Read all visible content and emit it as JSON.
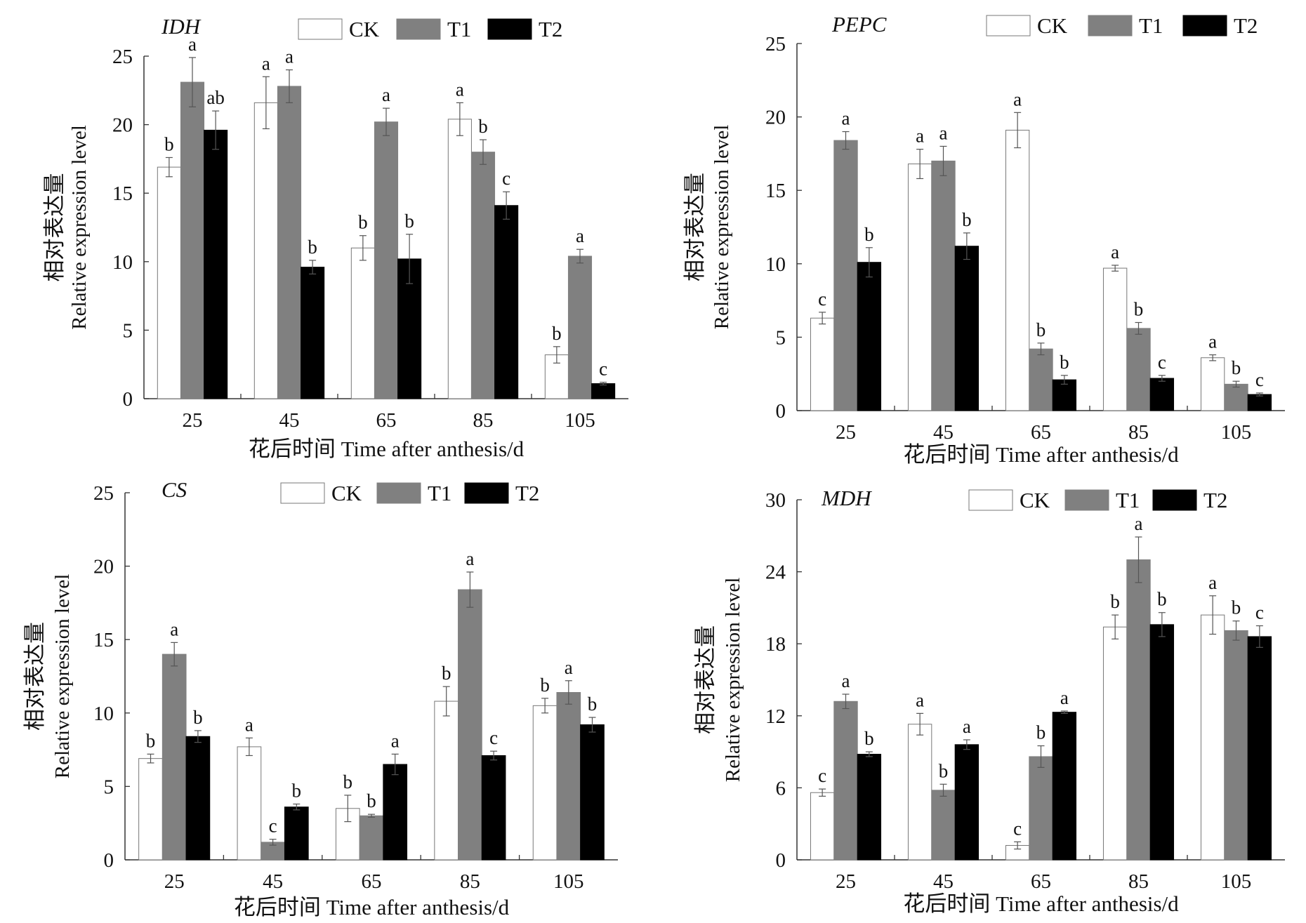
{
  "series_colors": {
    "CK": "#ffffff",
    "T1": "#808080",
    "T2": "#000000"
  },
  "chart_data": [
    {
      "type": "bar",
      "title": "IDH",
      "ylabel_cn": "相对表达量",
      "ylabel": "Relative expression level",
      "xlabel": "花后时间 Time after anthesis/d",
      "categories": [
        "25",
        "45",
        "65",
        "85",
        "105"
      ],
      "ylim": [
        0,
        25
      ],
      "yticks": [
        0,
        5,
        10,
        15,
        20,
        25
      ],
      "legend": "top",
      "series": [
        {
          "name": "CK",
          "values": [
            16.9,
            21.6,
            11.0,
            20.4,
            3.2
          ],
          "errors": [
            0.7,
            1.9,
            0.9,
            1.2,
            0.6
          ],
          "letters": [
            "b",
            "a",
            "b",
            "a",
            "b"
          ]
        },
        {
          "name": "T1",
          "values": [
            23.1,
            22.8,
            20.2,
            18.0,
            10.4
          ],
          "errors": [
            1.8,
            1.2,
            1.0,
            0.9,
            0.5
          ],
          "letters": [
            "a",
            "a",
            "a",
            "b",
            "a"
          ]
        },
        {
          "name": "T2",
          "values": [
            19.6,
            9.6,
            10.2,
            14.1,
            1.1
          ],
          "errors": [
            1.4,
            0.5,
            1.8,
            1.0,
            0.1
          ],
          "letters": [
            "ab",
            "b",
            "b",
            "c",
            "c"
          ]
        }
      ]
    },
    {
      "type": "bar",
      "title": "PEPC",
      "ylabel_cn": "相对表达量",
      "ylabel": "Relative expression level",
      "xlabel": "花后时间 Time after anthesis/d",
      "categories": [
        "25",
        "45",
        "65",
        "85",
        "105"
      ],
      "ylim": [
        0,
        25
      ],
      "yticks": [
        0,
        5,
        10,
        15,
        20,
        25
      ],
      "legend": "top",
      "series": [
        {
          "name": "CK",
          "values": [
            6.3,
            16.8,
            19.1,
            9.7,
            3.6
          ],
          "errors": [
            0.4,
            1.0,
            1.2,
            0.2,
            0.2
          ],
          "letters": [
            "c",
            "a",
            "a",
            "a",
            "a"
          ]
        },
        {
          "name": "T1",
          "values": [
            18.4,
            17.0,
            4.2,
            5.6,
            1.8
          ],
          "errors": [
            0.6,
            1.0,
            0.4,
            0.4,
            0.2
          ],
          "letters": [
            "a",
            "a",
            "b",
            "b",
            "b"
          ]
        },
        {
          "name": "T2",
          "values": [
            10.1,
            11.2,
            2.1,
            2.2,
            1.1
          ],
          "errors": [
            1.0,
            0.9,
            0.3,
            0.2,
            0.1
          ],
          "letters": [
            "b",
            "b",
            "b",
            "c",
            "c"
          ]
        }
      ]
    },
    {
      "type": "bar",
      "title": "CS",
      "ylabel_cn": "相对表达量",
      "ylabel": "Relative expression level",
      "xlabel": "花后时间 Time after anthesis/d",
      "categories": [
        "25",
        "45",
        "65",
        "85",
        "105"
      ],
      "ylim": [
        0,
        25
      ],
      "yticks": [
        0,
        5,
        10,
        15,
        20,
        25
      ],
      "legend": "top",
      "series": [
        {
          "name": "CK",
          "values": [
            6.9,
            7.7,
            3.5,
            10.8,
            10.5
          ],
          "errors": [
            0.3,
            0.6,
            0.9,
            1.0,
            0.5
          ],
          "letters": [
            "b",
            "a",
            "b",
            "b",
            "b"
          ]
        },
        {
          "name": "T1",
          "values": [
            14.0,
            1.2,
            3.0,
            18.4,
            11.4
          ],
          "errors": [
            0.8,
            0.2,
            0.1,
            1.2,
            0.8
          ],
          "letters": [
            "a",
            "c",
            "b",
            "a",
            "a"
          ]
        },
        {
          "name": "T2",
          "values": [
            8.4,
            3.6,
            6.5,
            7.1,
            9.2
          ],
          "errors": [
            0.4,
            0.2,
            0.7,
            0.3,
            0.5
          ],
          "letters": [
            "b",
            "b",
            "a",
            "c",
            "b"
          ]
        }
      ]
    },
    {
      "type": "bar",
      "title": "MDH",
      "ylabel_cn": "相对表达量",
      "ylabel": "Relative expression level",
      "xlabel": "花后时间 Time after anthesis/d",
      "categories": [
        "25",
        "45",
        "65",
        "85",
        "105"
      ],
      "ylim": [
        0,
        30
      ],
      "yticks": [
        0,
        6,
        12,
        18,
        24,
        30
      ],
      "legend": "top",
      "series": [
        {
          "name": "CK",
          "values": [
            5.6,
            11.3,
            1.2,
            19.4,
            20.4
          ],
          "errors": [
            0.3,
            0.9,
            0.3,
            1.0,
            1.6
          ],
          "letters": [
            "c",
            "a",
            "c",
            "b",
            "a"
          ]
        },
        {
          "name": "T1",
          "values": [
            13.2,
            5.8,
            8.6,
            25.0,
            19.1
          ],
          "errors": [
            0.6,
            0.5,
            0.9,
            1.9,
            0.8
          ],
          "letters": [
            "a",
            "b",
            "b",
            "a",
            "b"
          ]
        },
        {
          "name": "T2",
          "values": [
            8.8,
            9.6,
            12.3,
            19.6,
            18.6
          ],
          "errors": [
            0.2,
            0.4,
            0.1,
            1.0,
            0.9
          ],
          "letters": [
            "b",
            "a",
            "a",
            "b",
            "c"
          ]
        }
      ]
    }
  ]
}
